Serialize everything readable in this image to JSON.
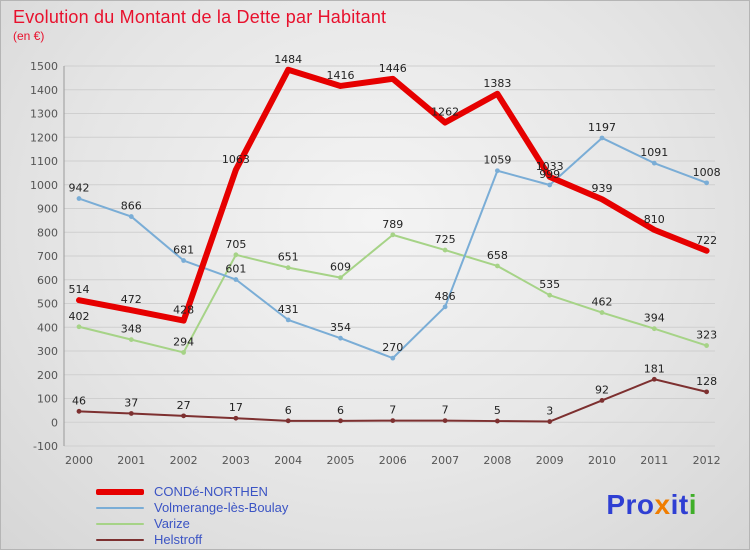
{
  "header": {
    "title": "Evolution du Montant de la Dette par Habitant",
    "subtitle": "(en €)",
    "title_color": "#e8112d"
  },
  "chart_data": {
    "type": "line",
    "title": "Evolution du Montant de la Dette par Habitant",
    "ylabel": "en €",
    "categories": [
      2000,
      2001,
      2002,
      2003,
      2004,
      2005,
      2006,
      2007,
      2008,
      2009,
      2010,
      2011,
      2012
    ],
    "series": [
      {
        "name": "CONDé-NORTHEN",
        "color": "#e60000",
        "width": 6,
        "marker": false,
        "values": [
          514,
          472,
          428,
          1063,
          1484,
          1416,
          1446,
          1262,
          1383,
          1033,
          939,
          810,
          722
        ]
      },
      {
        "name": "Volmerange-lès-Boulay",
        "color": "#7aadd6",
        "width": 2,
        "marker": true,
        "values": [
          942,
          866,
          681,
          601,
          431,
          354,
          270,
          486,
          1059,
          999,
          1197,
          1091,
          1008
        ]
      },
      {
        "name": "Varize",
        "color": "#a6d387",
        "width": 2,
        "marker": true,
        "values": [
          402,
          348,
          294,
          705,
          651,
          609,
          789,
          725,
          658,
          535,
          462,
          394,
          323
        ]
      },
      {
        "name": "Helstroff",
        "color": "#7d3030",
        "width": 2,
        "marker": true,
        "values": [
          46,
          37,
          27,
          17,
          6,
          6,
          7,
          7,
          5,
          3,
          92,
          181,
          128
        ]
      }
    ],
    "ylim": [
      -100,
      1500
    ],
    "ytick_step": 100,
    "grid": true,
    "legend_position": "bottom-left",
    "label_color": "#222222",
    "axis_text_color": "#555555",
    "grid_color": "#cfcfcf",
    "axis_line_color": "#9a9a9a"
  },
  "legend": {
    "text_color": "#3b54c4"
  },
  "logo": {
    "text": "Proxiti",
    "parts": [
      {
        "t": "Pro",
        "c": "#2f3fd3"
      },
      {
        "t": "x",
        "c": "#f07d00"
      },
      {
        "t": "i",
        "c": "#2f3fd3"
      },
      {
        "t": "t",
        "c": "#2f3fd3"
      },
      {
        "t": "i",
        "c": "#3fae29"
      }
    ]
  }
}
